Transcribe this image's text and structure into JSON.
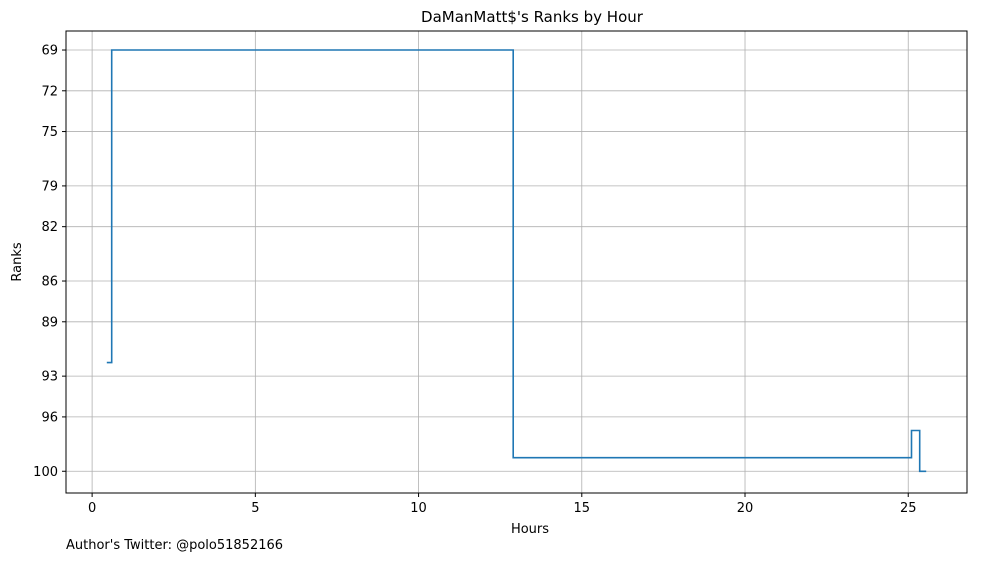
{
  "chart_data": {
    "type": "line",
    "step": true,
    "title": "DaManMatt$'s Ranks by Hour",
    "xlabel": "Hours",
    "ylabel": "Ranks",
    "xlim": [
      -0.8,
      26.8
    ],
    "ylim": [
      101.6,
      67.6
    ],
    "y_inverted": true,
    "x_ticks": [
      0,
      5,
      10,
      15,
      20,
      25
    ],
    "y_ticks": [
      69,
      72,
      75,
      79,
      82,
      86,
      89,
      93,
      96,
      100
    ],
    "grid": true,
    "series": [
      {
        "color": "#1f77b4",
        "x": [
          0.45,
          0.6,
          0.6,
          12.9,
          12.9,
          25.1,
          25.1,
          25.35,
          25.35,
          25.55
        ],
        "y": [
          92.0,
          92.0,
          69.0,
          69.0,
          99.0,
          99.0,
          97.0,
          97.0,
          100.0,
          100.0
        ]
      }
    ]
  },
  "footer": {
    "author_text": "Author's Twitter: @polo51852166"
  }
}
